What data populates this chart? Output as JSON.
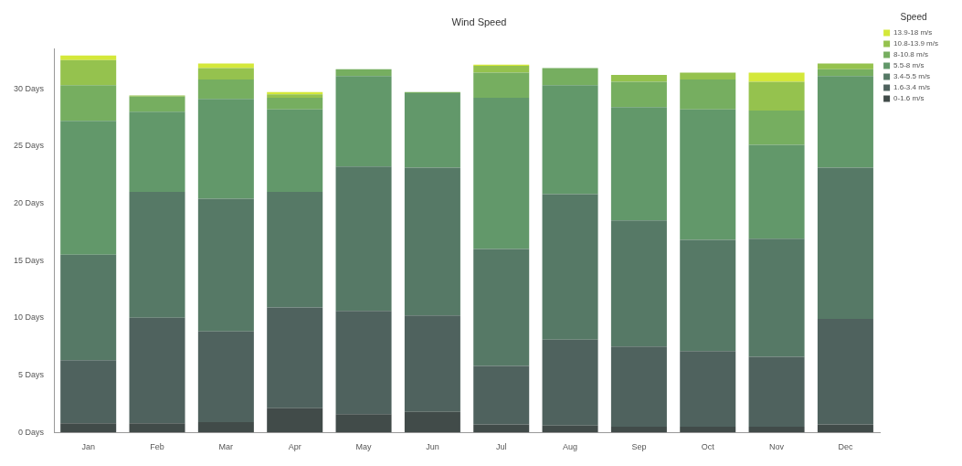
{
  "chart_data": {
    "type": "bar",
    "title": "Wind Speed",
    "legend_title": "Speed",
    "stacked": true,
    "legend": "top right",
    "grid": false,
    "categories": [
      "Jan",
      "Feb",
      "Mar",
      "Apr",
      "May",
      "Jun",
      "Jul",
      "Aug",
      "Sep",
      "Oct",
      "Nov",
      "Dec"
    ],
    "ylim": [
      0,
      33.5
    ],
    "yticks": [
      {
        "value": 0,
        "label": "0 Days"
      },
      {
        "value": 5,
        "label": "5 Days"
      },
      {
        "value": 10,
        "label": "10 Days"
      },
      {
        "value": 15,
        "label": "15 Days"
      },
      {
        "value": 20,
        "label": "20 Days"
      },
      {
        "value": 25,
        "label": "25 Days"
      },
      {
        "value": 30,
        "label": "30 Days"
      }
    ],
    "series": [
      {
        "name": "0-1.6 m/s",
        "color": "#414b49",
        "values": [
          0.8,
          0.8,
          0.9,
          2.1,
          1.6,
          1.8,
          0.7,
          0.6,
          0.5,
          0.5,
          0.5,
          0.7
        ]
      },
      {
        "name": "1.6-3.4 m/s",
        "color": "#4f625e",
        "values": [
          5.5,
          9.2,
          7.9,
          8.8,
          9.0,
          8.4,
          5.1,
          7.5,
          7.0,
          6.6,
          6.1,
          9.2
        ]
      },
      {
        "name": "3.4-5.5 m/s",
        "color": "#567966",
        "values": [
          9.2,
          11.0,
          11.6,
          10.1,
          12.6,
          12.9,
          10.2,
          12.7,
          11.0,
          9.7,
          10.3,
          13.2
        ]
      },
      {
        "name": "5.5-8 m/s",
        "color": "#62986a",
        "values": [
          11.7,
          7.0,
          8.7,
          7.2,
          7.9,
          6.5,
          13.2,
          9.5,
          9.9,
          11.4,
          8.2,
          8.0
        ]
      },
      {
        "name": "8-10.8 m/s",
        "color": "#76ae60",
        "values": [
          3.1,
          1.3,
          1.7,
          1.0,
          0.6,
          0.1,
          2.2,
          1.5,
          2.2,
          2.6,
          3.0,
          0.6
        ]
      },
      {
        "name": "10.8-13.9 m/s",
        "color": "#95c24e",
        "values": [
          2.2,
          0.1,
          1.0,
          0.3,
          0,
          0,
          0.6,
          0,
          0.6,
          0.6,
          2.5,
          0.5
        ]
      },
      {
        "name": "13.9-18 m/s",
        "color": "#d4e83a",
        "values": [
          0.4,
          0,
          0.4,
          0.2,
          0,
          0,
          0.1,
          0,
          0,
          0,
          0.8,
          0
        ]
      }
    ]
  }
}
